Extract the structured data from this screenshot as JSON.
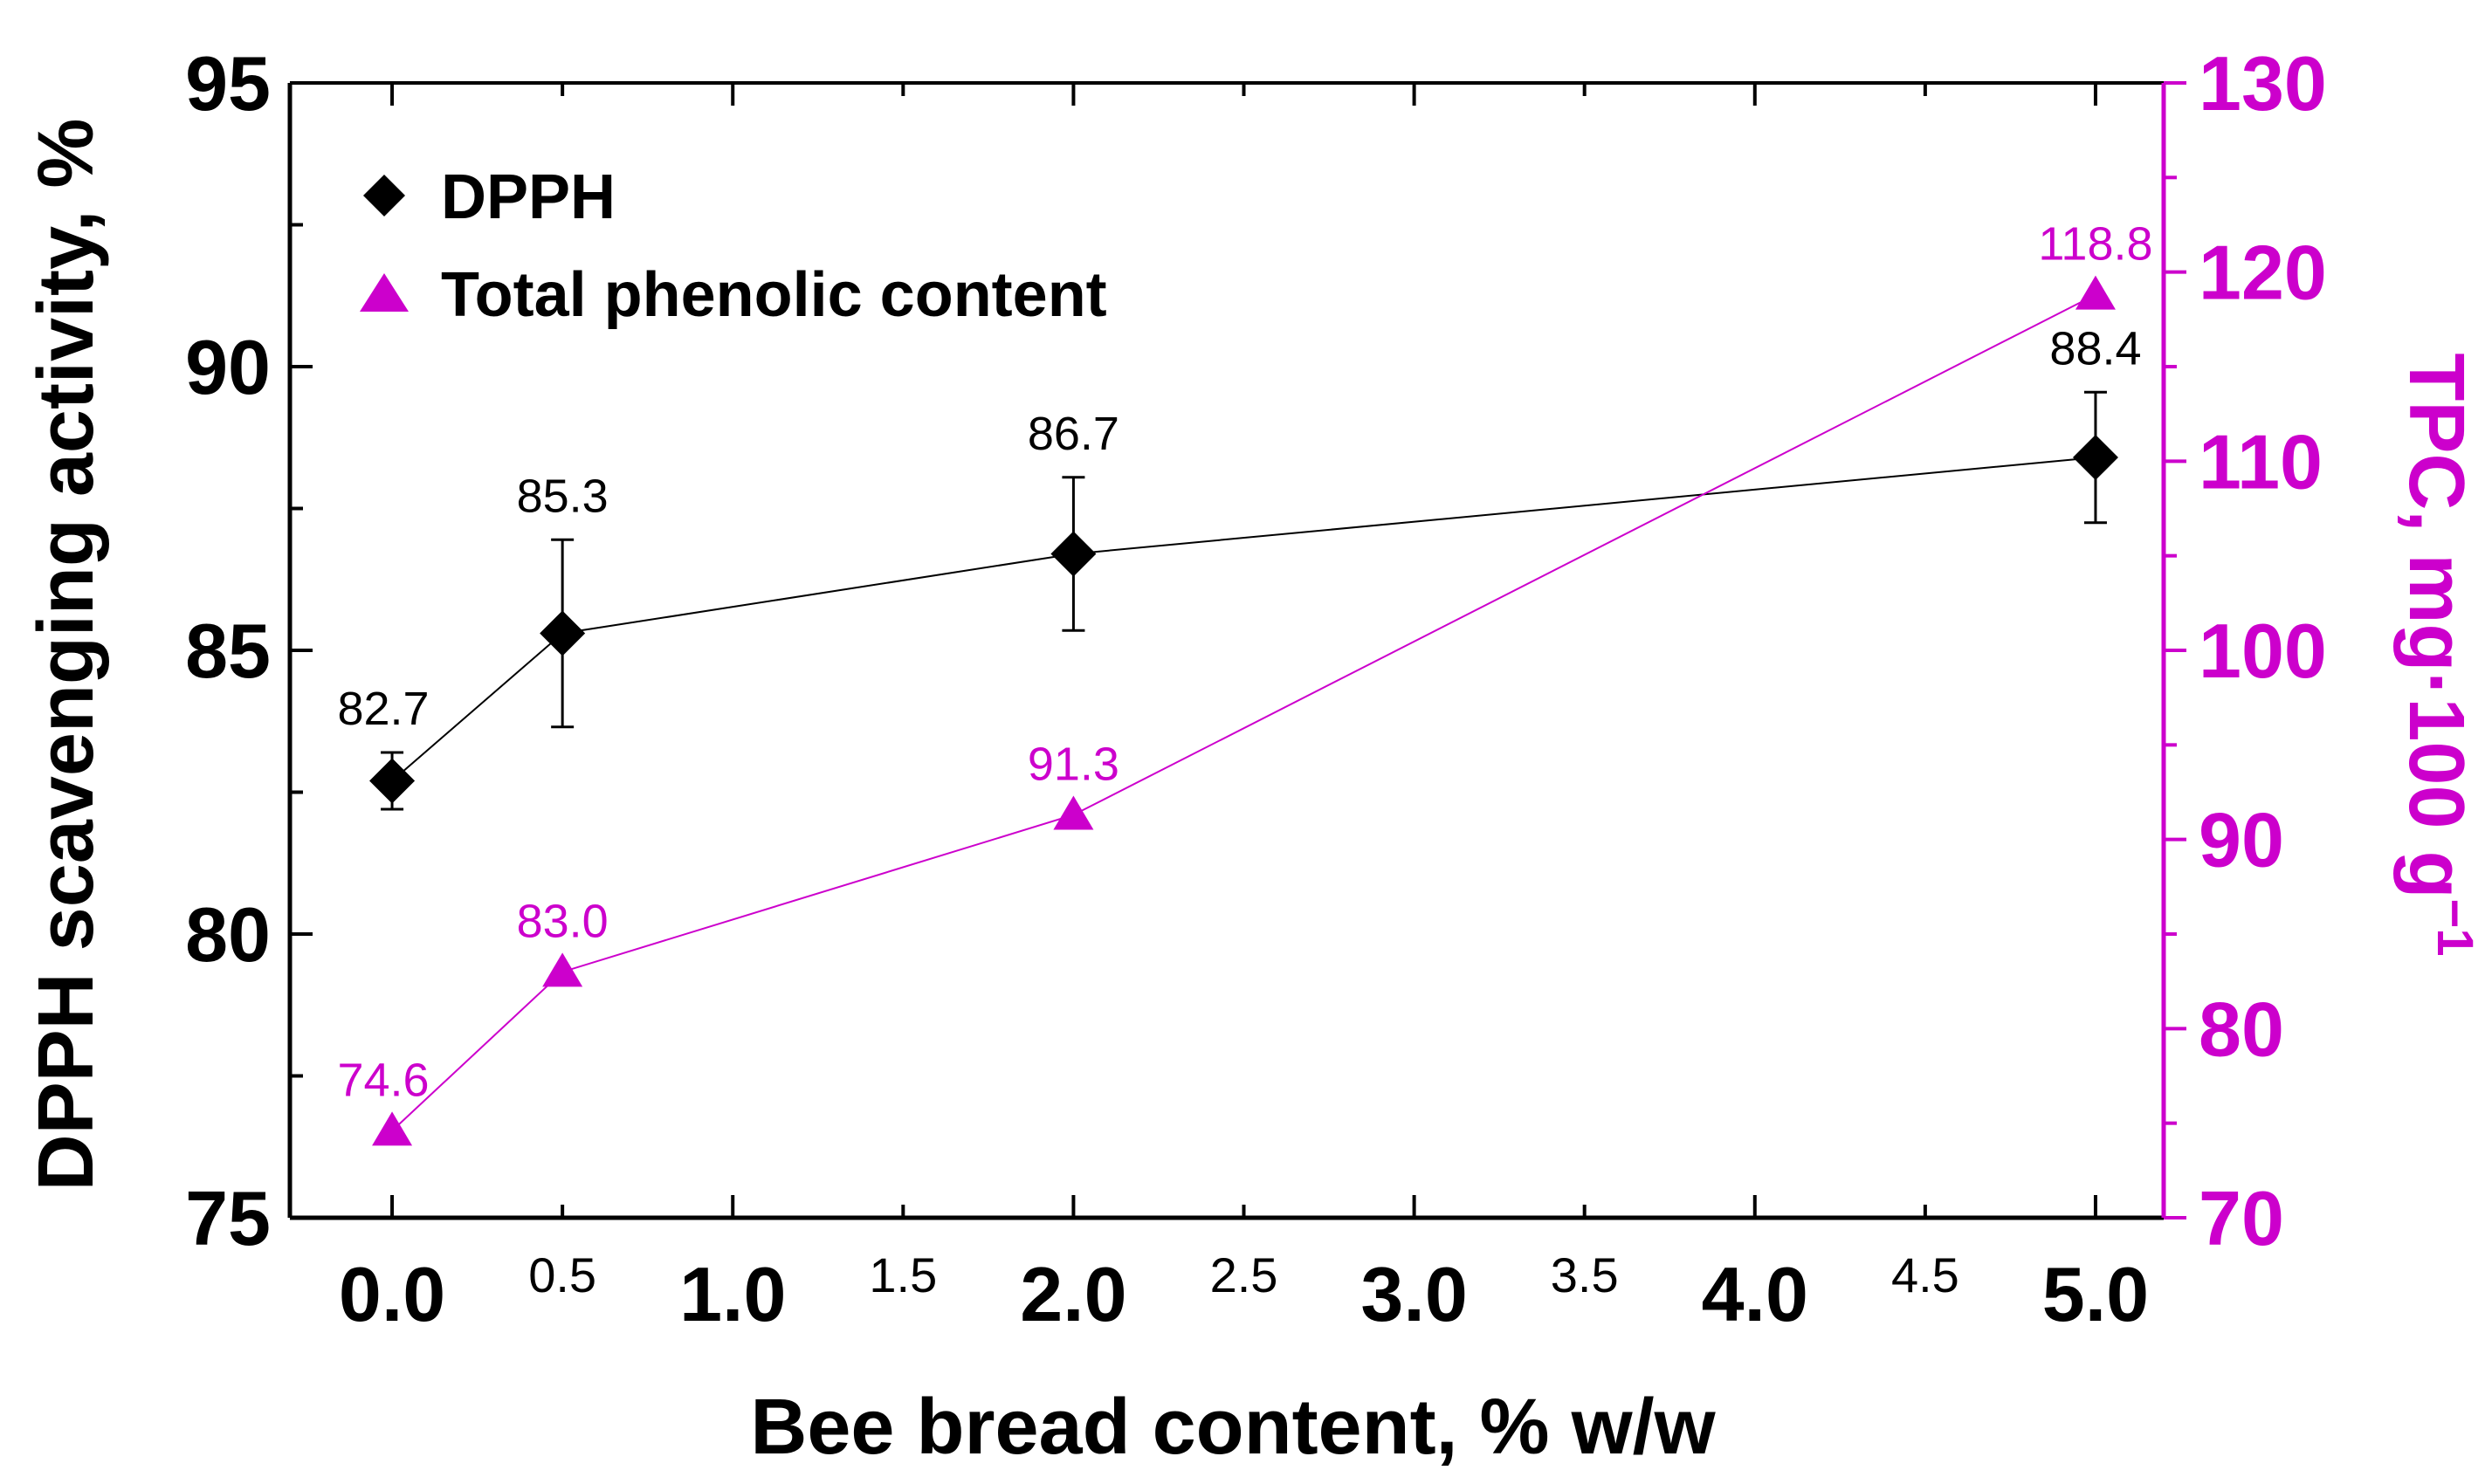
{
  "chart_data": {
    "type": "line",
    "xlabel": "Bee bread content, % w/w",
    "ylabel_left": "DPPH scavenging activity, %",
    "ylabel_right": {
      "main": "TPC, mg·100 g",
      "superscript": "−1"
    },
    "xlim": [
      -0.3,
      5.2
    ],
    "ylim_left": [
      75,
      95
    ],
    "ylim_right": [
      70,
      130
    ],
    "x_ticks_major": [
      "0.0",
      "1.0",
      "2.0",
      "3.0",
      "4.0",
      "5.0"
    ],
    "x_ticks_minor": [
      "0.5",
      "1.5",
      "2.5",
      "3.5",
      "4.5"
    ],
    "y_ticks_left": [
      "75",
      "80",
      "85",
      "90",
      "95"
    ],
    "y_ticks_right": [
      "70",
      "80",
      "90",
      "100",
      "110",
      "120",
      "130"
    ],
    "series": [
      {
        "name": "DPPH",
        "axis": "left",
        "marker": "diamond",
        "color": "#000000",
        "x": [
          0.0,
          0.5,
          2.0,
          5.0
        ],
        "y": [
          82.7,
          85.3,
          86.7,
          88.4
        ],
        "error": [
          0.5,
          1.65,
          1.35,
          1.15
        ],
        "labels": [
          "82.7",
          "85.3",
          "86.7",
          "88.4"
        ]
      },
      {
        "name": "Total phenolic content",
        "axis": "right",
        "marker": "triangle",
        "color": "#cc00cc",
        "x": [
          0.0,
          0.5,
          2.0,
          5.0
        ],
        "y": [
          74.6,
          83.0,
          91.3,
          118.8
        ],
        "labels": [
          "74.6",
          "83.0",
          "91.3",
          "118.8"
        ]
      }
    ],
    "legend_position": "top-left"
  }
}
